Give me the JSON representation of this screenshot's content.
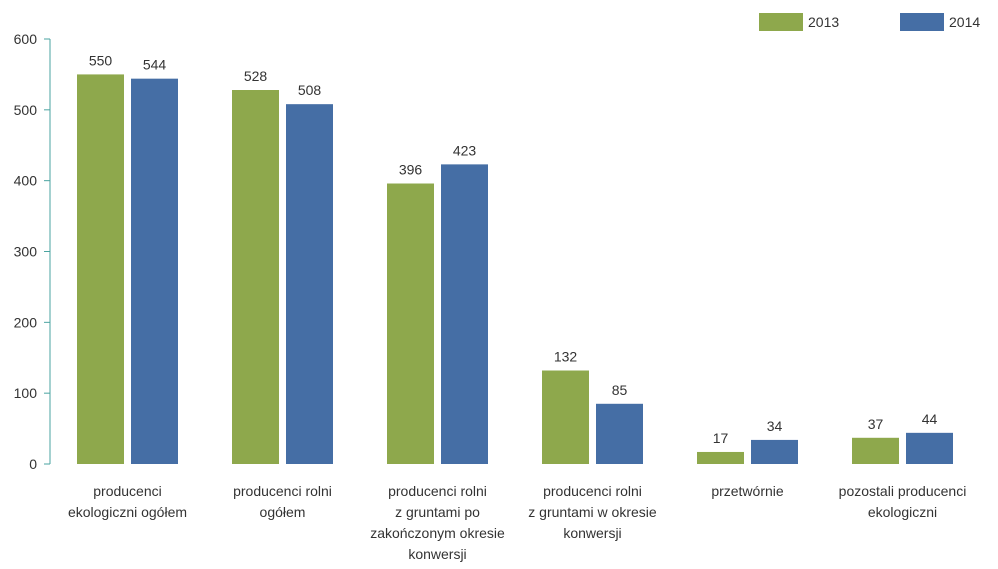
{
  "chart_data": {
    "type": "bar",
    "title": "",
    "xlabel": "",
    "ylabel": "",
    "ylim": [
      0,
      600
    ],
    "yticks": [
      0,
      100,
      200,
      300,
      400,
      500,
      600
    ],
    "grid": false,
    "legend_position": "top-right",
    "categories": [
      [
        "producenci",
        "ekologiczni ogółem"
      ],
      [
        "producenci rolni",
        "ogółem"
      ],
      [
        "producenci rolni",
        "z gruntami po",
        "zakończonym okresie",
        "konwersji"
      ],
      [
        "producenci rolni",
        "z gruntami w okresie",
        "konwersji"
      ],
      [
        "przetwórnie"
      ],
      [
        "pozostali producenci",
        "ekologiczni"
      ]
    ],
    "series": [
      {
        "name": "2013",
        "color": "#8ea84c",
        "values": [
          550,
          528,
          396,
          132,
          17,
          37
        ]
      },
      {
        "name": "2014",
        "color": "#456ea5",
        "values": [
          544,
          508,
          423,
          85,
          34,
          44
        ]
      }
    ],
    "axis_color": "#4aa3a0"
  }
}
